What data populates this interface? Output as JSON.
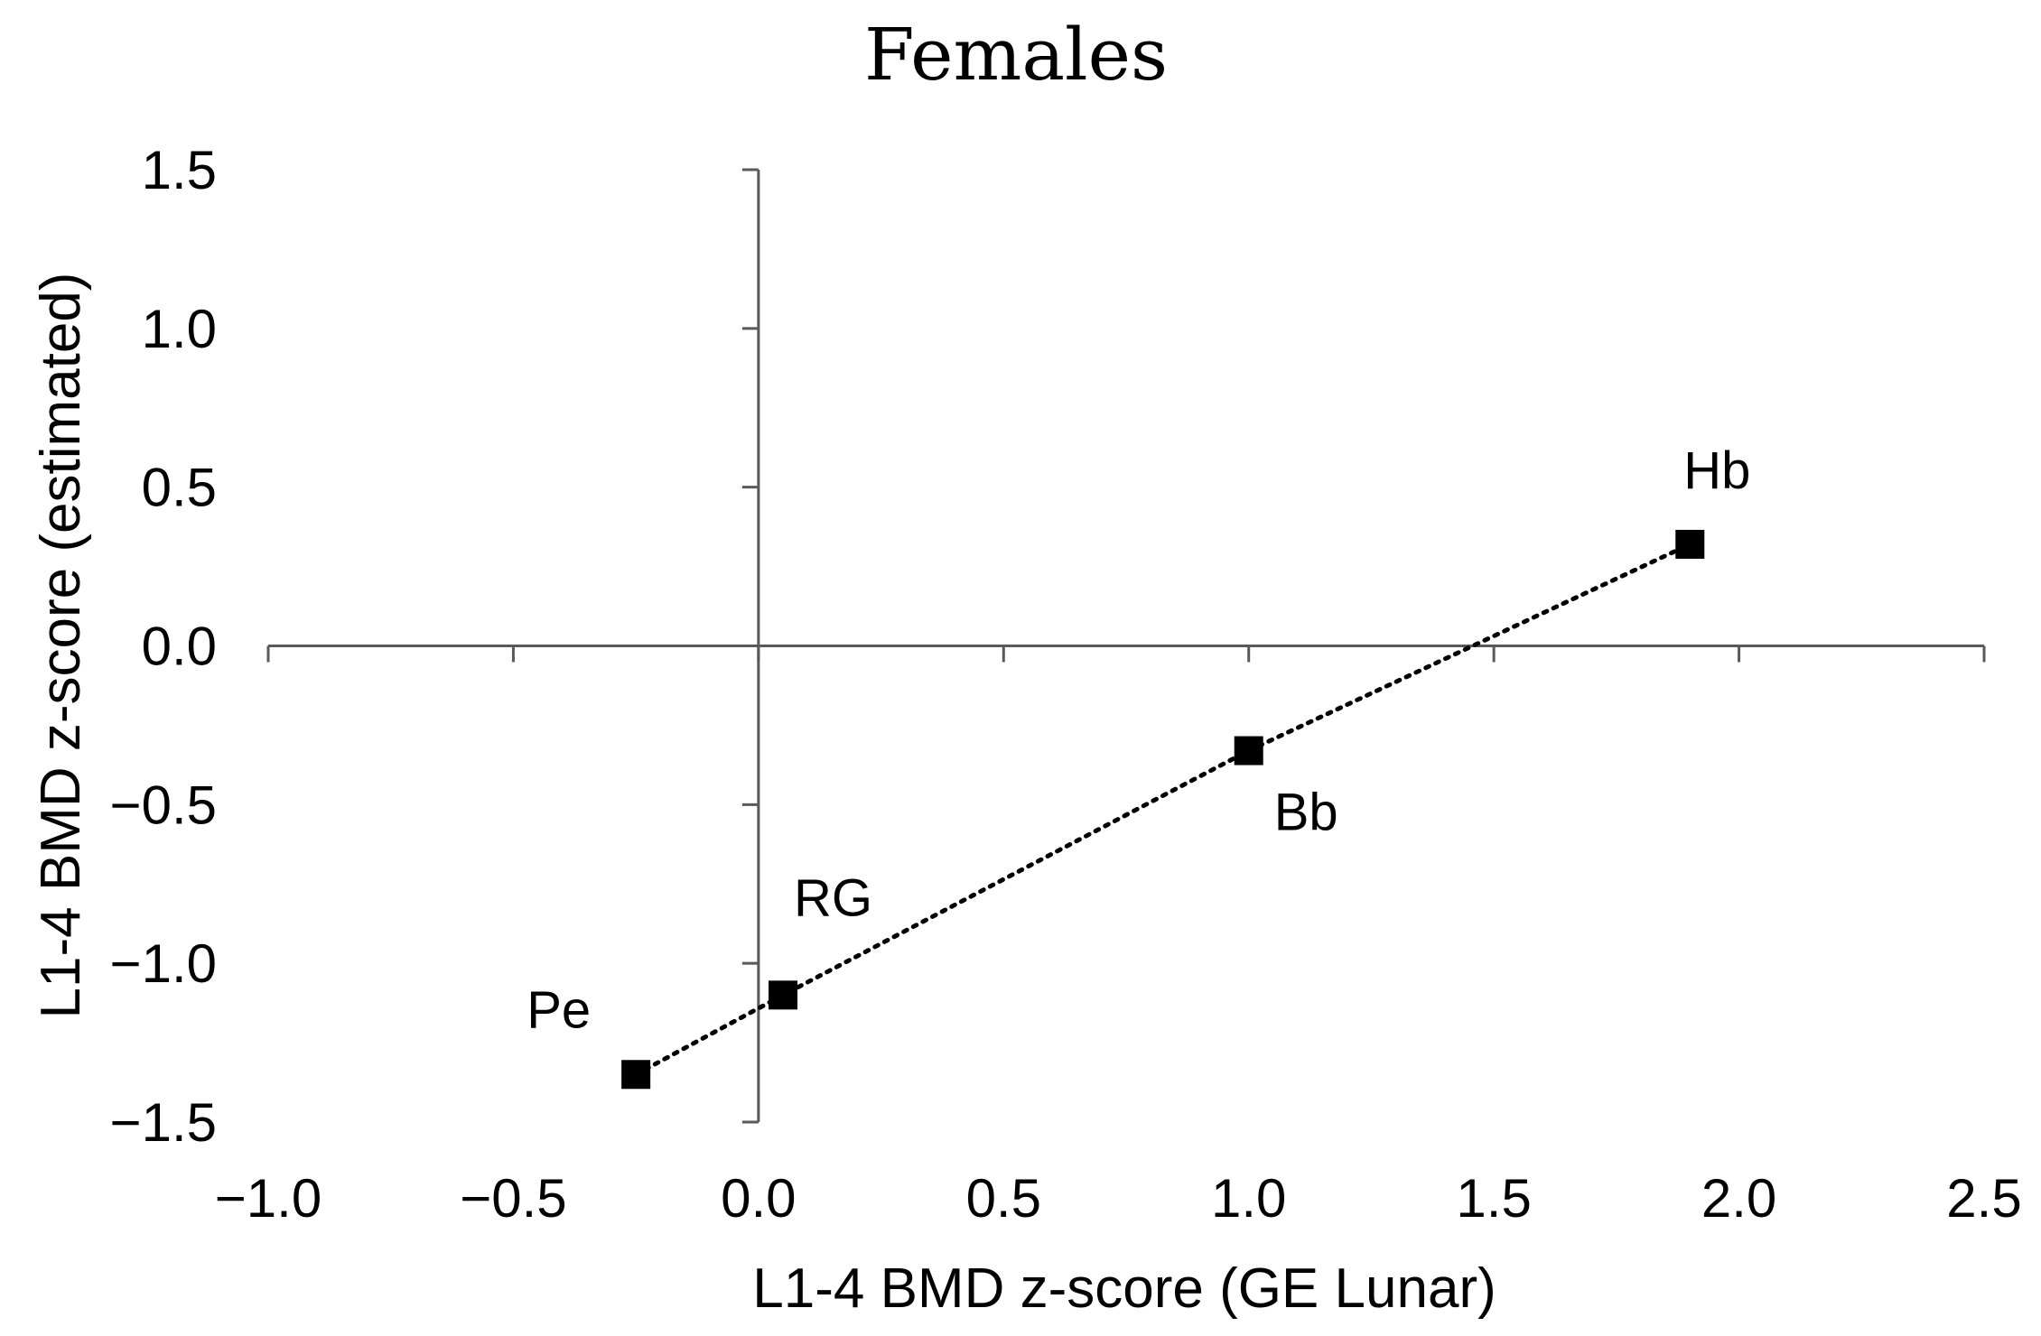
{
  "chart_data": {
    "type": "scatter",
    "title": "Females",
    "xlabel": "L1-4 BMD z-score (GE Lunar)",
    "ylabel": "L1-4 BMD z-score (estimated)",
    "xlim": [
      -1.0,
      2.5
    ],
    "ylim": [
      -1.5,
      1.5
    ],
    "x_ticks": [
      -1.0,
      -0.5,
      0.0,
      0.5,
      1.0,
      1.5,
      2.0,
      2.5
    ],
    "y_ticks": [
      -1.5,
      -1.0,
      -0.5,
      0.0,
      0.5,
      1.0,
      1.5
    ],
    "x_tick_labels": [
      "−1.0",
      "−0.5",
      "0.0",
      "0.5",
      "1.0",
      "1.5",
      "2.0",
      "2.5"
    ],
    "y_tick_labels": [
      "−1.5",
      "−1.0",
      "−0.5",
      "0.0",
      "0.5",
      "1.0",
      "1.5"
    ],
    "points": [
      {
        "label": "Pe",
        "x": -0.25,
        "y": -1.35,
        "label_pos": "upper-left"
      },
      {
        "label": "RG",
        "x": 0.05,
        "y": -1.1,
        "label_pos": "upper-right"
      },
      {
        "label": "Bb",
        "x": 1.0,
        "y": -0.33,
        "label_pos": "lower-right"
      },
      {
        "label": "Hb",
        "x": 1.9,
        "y": 0.32,
        "label_pos": "upper"
      }
    ],
    "trendline": {
      "style": "dotted",
      "x_from": -0.25,
      "x_to": 1.9
    },
    "marker": "square",
    "marker_color": "#000000",
    "axis_color": "#595959",
    "grid": false,
    "legend": "none"
  }
}
